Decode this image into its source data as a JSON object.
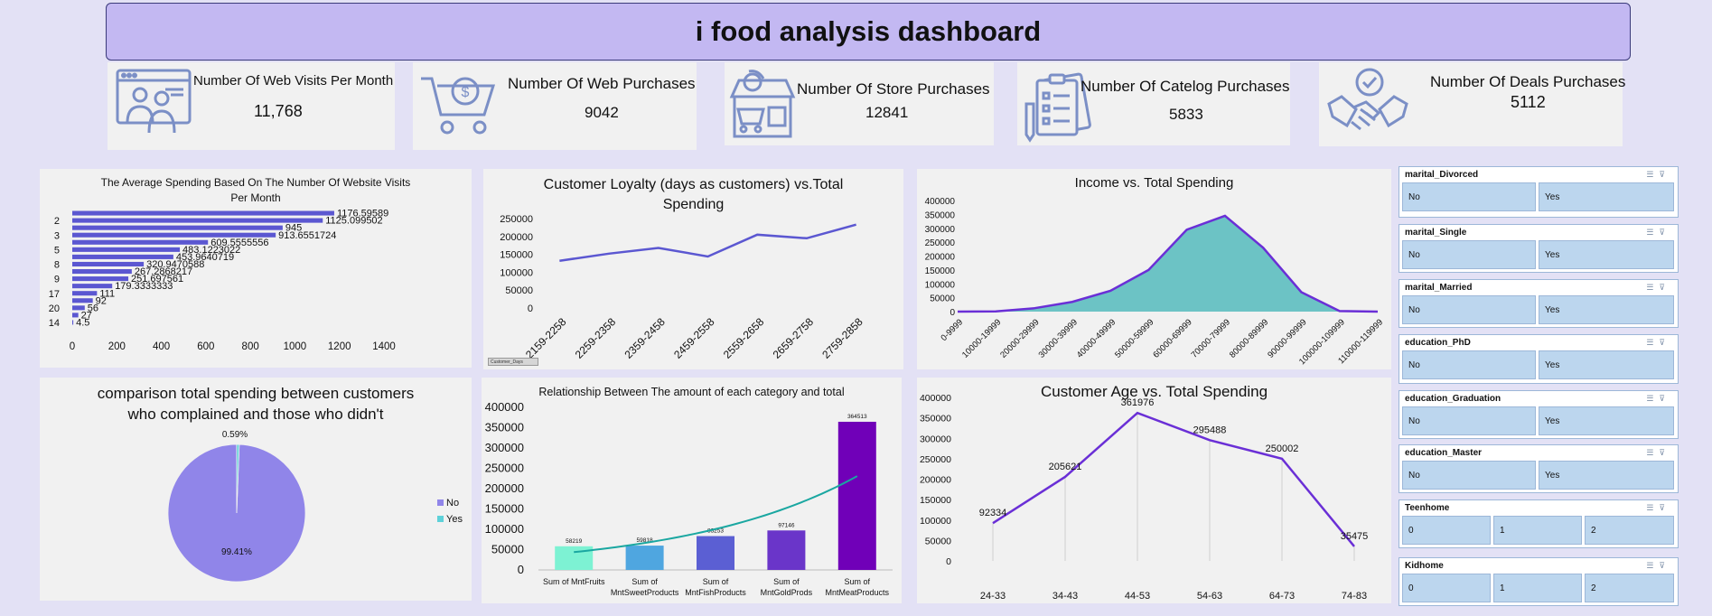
{
  "title": "i food analysis dashboard",
  "kpis": [
    {
      "label": "Number Of Web Visits Per Month",
      "value": "11,768",
      "icon": "web-visits-icon"
    },
    {
      "label": "Number Of Web Purchases",
      "value": "9042",
      "icon": "shopping-cart-icon"
    },
    {
      "label": "Number Of Store Purchases",
      "value": "12841",
      "icon": "store-icon"
    },
    {
      "label": "Number Of Catelog Purchases",
      "value": "5833",
      "icon": "catalog-icon"
    },
    {
      "label": "Number Of Deals Purchases",
      "value": "5112",
      "icon": "handshake-icon"
    }
  ],
  "charts": {
    "web_visits": {
      "title_line1": "The Average Spending Based On The Number Of Website Visits",
      "title_line2": "Per Month"
    },
    "loyalty": {
      "title_line1": "Customer Loyalty (days as customers) vs.Total",
      "title_line2": "Spending",
      "field_button": "Customer_Days"
    },
    "income": {
      "title": "Income vs. Total Spending"
    },
    "complaints": {
      "title_line1": "comparison total spending between customers",
      "title_line2": "who complained and those who didn't"
    },
    "category": {
      "title": "Relationship Between The amount of each category and total"
    },
    "age": {
      "title": "Customer Age vs. Total Spending"
    }
  },
  "chart_data": [
    {
      "type": "bar",
      "orientation": "horizontal",
      "title": "The Average Spending Based On The Number Of Website Visits Per Month",
      "categories": [
        "",
        "2",
        "",
        "3",
        "",
        "5",
        "",
        "8",
        "",
        "9",
        "",
        "17",
        "",
        "20",
        "",
        "14"
      ],
      "values": [
        1176.59589,
        1125.099502,
        945,
        913.6551724,
        609.5555556,
        483.1223022,
        453.9640719,
        320.9470588,
        267.2868217,
        251.697561,
        179.3333333,
        111,
        92,
        56,
        27,
        4.5
      ],
      "data_labels": [
        "1176.59589",
        "1125.099502",
        "945",
        "913.6551724",
        "609.5555556",
        "483.1223022",
        "453.9640719",
        "320.9470588",
        "267.2868217",
        "251.697561",
        "179.3333333",
        "111",
        "92",
        "56",
        "27",
        "4.5"
      ],
      "xticks": [
        "0",
        "200",
        "400",
        "600",
        "800",
        "1000",
        "1200",
        "1400"
      ],
      "xlim": [
        0,
        1400
      ],
      "color": "#5b57d1"
    },
    {
      "type": "line",
      "title": "Customer Loyalty (days as customers) vs.Total Spending",
      "categories": [
        "2159-2258",
        "2259-2358",
        "2359-2458",
        "2459-2558",
        "2559-2658",
        "2659-2758",
        "2759-2858"
      ],
      "values": [
        132000,
        152000,
        168000,
        144000,
        205000,
        195000,
        233000
      ],
      "yticks": [
        "0",
        "50000",
        "100000",
        "150000",
        "200000",
        "250000"
      ],
      "ylim": [
        0,
        250000
      ],
      "color": "#5b57d1"
    },
    {
      "type": "area",
      "title": "Income vs. Total Spending",
      "categories": [
        "0-9999",
        "10000-19999",
        "20000-29999",
        "30000-39999",
        "40000-49999",
        "50000-59999",
        "60000-69999",
        "70000-79999",
        "80000-89999",
        "90000-99999",
        "100000-109999",
        "110000-119999"
      ],
      "values": [
        0,
        1000,
        12000,
        35000,
        75000,
        150000,
        295000,
        345000,
        230000,
        70000,
        2000,
        0
      ],
      "yticks": [
        "0",
        "50000",
        "100000",
        "150000",
        "200000",
        "250000",
        "300000",
        "350000",
        "400000"
      ],
      "ylim": [
        0,
        400000
      ],
      "fill": "#6cc3c5",
      "line": "#6a2fd6"
    },
    {
      "type": "pie",
      "title": "comparison total spending between customers who complained and those who didn't",
      "labels": [
        "No",
        "Yes"
      ],
      "values": [
        99.41,
        0.59
      ],
      "data_labels": [
        "99.41%",
        "0.59%"
      ],
      "colors": [
        "#9085e9",
        "#5ed1d9"
      ],
      "legend": "right"
    },
    {
      "type": "bar",
      "title": "Relationship Between The amount of each category and total",
      "categories": [
        "Sum of MntFruits",
        "Sum of MntSweetProducts",
        "Sum of MntFishProducts",
        "Sum of MntGoldProds",
        "Sum of MntMeatProducts"
      ],
      "category_lines": [
        [
          "Sum of MntFruits"
        ],
        [
          "Sum of",
          "MntSweetProducts"
        ],
        [
          "Sum of",
          "MntFishProducts"
        ],
        [
          "Sum of",
          "MntGoldProds"
        ],
        [
          "Sum of",
          "MntMeatProducts"
        ]
      ],
      "values": [
        58219,
        59818,
        83253,
        97146,
        364513
      ],
      "data_labels": [
        "58219",
        "59818",
        "83253",
        "97146",
        "364513"
      ],
      "colors": [
        "#7df2d3",
        "#4fa6e0",
        "#5b5fd3",
        "#6a35c9",
        "#7000b8"
      ],
      "trendline": "exponential",
      "trendline_color": "#1aa7a1",
      "yticks": [
        "0",
        "50000",
        "100000",
        "150000",
        "200000",
        "250000",
        "300000",
        "350000",
        "400000"
      ],
      "ylim": [
        0,
        400000
      ]
    },
    {
      "type": "line",
      "title": "Customer Age vs. Total Spending",
      "categories": [
        "24-33",
        "34-43",
        "44-53",
        "54-63",
        "64-73",
        "74-83"
      ],
      "values": [
        92334,
        205621,
        361976,
        295488,
        250002,
        35475
      ],
      "data_labels": [
        "92334",
        "205621",
        "361976",
        "295488",
        "250002",
        "35475"
      ],
      "yticks": [
        "0",
        "50000",
        "100000",
        "150000",
        "200000",
        "250000",
        "300000",
        "350000",
        "400000"
      ],
      "ylim": [
        0,
        400000
      ],
      "color": "#6a2fd6"
    }
  ],
  "slicers": [
    {
      "title": "marital_Divorced",
      "options": [
        "No",
        "Yes"
      ]
    },
    {
      "title": "marital_Single",
      "options": [
        "No",
        "Yes"
      ]
    },
    {
      "title": "marital_Married",
      "options": [
        "No",
        "Yes"
      ]
    },
    {
      "title": "education_PhD",
      "options": [
        "No",
        "Yes"
      ]
    },
    {
      "title": "education_Graduation",
      "options": [
        "No",
        "Yes"
      ]
    },
    {
      "title": "education_Master",
      "options": [
        "No",
        "Yes"
      ]
    },
    {
      "title": "Teenhome",
      "options": [
        "0",
        "1",
        "2"
      ]
    },
    {
      "title": "Kidhome",
      "options": [
        "0",
        "1",
        "2"
      ]
    }
  ]
}
